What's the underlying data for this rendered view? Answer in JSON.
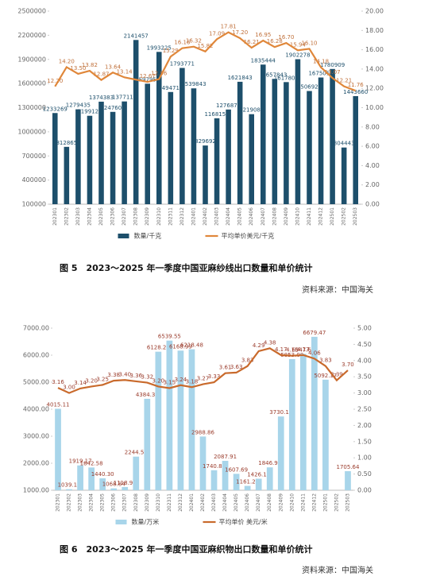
{
  "chart_data": [
    {
      "type": "combo",
      "caption": "图 5　2023～2025 年一季度中国亚麻纱线出口数量和单价统计",
      "source": "资料来源：中国海关",
      "categories": [
        "202301",
        "202302",
        "202303",
        "202304",
        "202305",
        "202306",
        "202307",
        "202308",
        "202309",
        "202310",
        "202311",
        "202312",
        "202401",
        "202402",
        "202403",
        "202404",
        "202405",
        "202406",
        "202407",
        "202408",
        "202409",
        "202410",
        "202411",
        "202412",
        "202501",
        "202502",
        "202503"
      ],
      "series": [
        {
          "name": "数量/千克",
          "type": "bar",
          "color": "#1d4f6b",
          "values": [
            1233269,
            812865,
            1279435,
            1199126,
            1374383,
            1247604,
            1377117,
            2141457,
            1597957,
            1993225,
            1494717,
            1793771,
            1539843,
            829692,
            1168150,
            1276877,
            1621843,
            1219086,
            1835444,
            1657843,
            1617802,
            1902278,
            1506925,
            1675012,
            1780909,
            804443,
            1443660
          ]
        },
        {
          "name": "平均单价美元/千克",
          "type": "line",
          "axis": "y2",
          "color": "#e0873a",
          "values": [
            12.2,
            14.2,
            13.5,
            13.82,
            12.87,
            13.64,
            13.14,
            12.9,
            12.67,
            12.96,
            15.29,
            16.16,
            16.32,
            15.82,
            17.09,
            17.81,
            17.2,
            16.21,
            16.95,
            16.28,
            16.7,
            15.94,
            16.1,
            14.18,
            13.07,
            12.21,
            11.76
          ],
          "value_labels": [
            "12.20",
            "14.20",
            "13.50",
            "13.82",
            "12.87",
            "13.64",
            "13.14",
            null,
            "12.67",
            "12.96",
            "15.29",
            "16.16",
            "16.32",
            "15.82",
            "17.09",
            "17.81",
            "17.20",
            "16.21",
            "16.95",
            "16.28",
            "16.70",
            "15.94",
            "16.10",
            "14.18",
            "13.07",
            "12.21",
            "11.76"
          ]
        }
      ],
      "ylim": [
        100000,
        2500000
      ],
      "yticks": [
        100000,
        400000,
        700000,
        1000000,
        1300000,
        1600000,
        1900000,
        2200000,
        2500000
      ],
      "y2lim": [
        0,
        20
      ],
      "y2ticks": [
        {
          "value": 0,
          "label": "0.00"
        },
        {
          "value": 2,
          "label": "2.00"
        },
        {
          "value": 4,
          "label": "4.00"
        },
        {
          "value": 6,
          "label": "6.00"
        },
        {
          "value": 8,
          "label": "8.00"
        },
        {
          "value": 10,
          "label": "10.00"
        },
        {
          "value": 12,
          "label": "12.00"
        },
        {
          "value": 14,
          "label": "14.00"
        },
        {
          "value": 16,
          "label": "16.00"
        },
        {
          "value": 18,
          "label": "18.00"
        },
        {
          "value": 20,
          "label": "20.00"
        }
      ],
      "grid": false,
      "legend": "bottom"
    },
    {
      "type": "combo",
      "caption": "图 6　2023～2025 年一季度中国亚麻织物出口数量和单价统计",
      "source": "资料来源：中国海关",
      "categories": [
        "202301",
        "202302",
        "202303",
        "202304",
        "202305",
        "202306",
        "202307",
        "202308",
        "202309",
        "202310",
        "202311",
        "202312",
        "202401",
        "202402",
        "202403",
        "202404",
        "202405",
        "202406",
        "202407",
        "202408",
        "202409",
        "202410",
        "202411",
        "202412",
        "202501",
        "202502",
        "202503"
      ],
      "series": [
        {
          "name": "数量/万米",
          "type": "bar",
          "color": "#a8d5ea",
          "values": [
            4015.11,
            1039.12,
            1919.17,
            1842.58,
            1440.3,
            1068.84,
            1118.98,
            2244.54,
            4384.38,
            6128.24,
            6539.55,
            6168.99,
            6218.48,
            2988.86,
            1740.87,
            2087.91,
            1607.69,
            1161.21,
            1426.13,
            1846.93,
            3730.14,
            5853.08,
            6047.64,
            6679.47,
            5092.37,
            null,
            1705.64
          ],
          "value_labels": [
            "4015.11",
            "1039.12",
            "1919.17",
            "1842.58",
            "1440.30",
            "1068.84",
            "1118.98",
            "2244.54",
            "4384.38",
            "6128.24",
            "6539.55",
            "6168.99",
            "6218.48",
            "2988.86",
            "1740.87",
            "2087.91",
            "1607.69",
            "1161.21",
            "1426.13",
            "1846.93",
            "3730.14",
            "5853.08",
            "6047.64",
            "6679.47",
            "5092.37",
            null,
            "1705.64"
          ]
        },
        {
          "name": "平均单价 美元/米",
          "type": "line",
          "axis": "y2",
          "color": "#c96a2c",
          "values": [
            3.16,
            3.0,
            3.14,
            3.2,
            3.25,
            3.38,
            3.4,
            3.36,
            3.32,
            3.2,
            3.15,
            3.24,
            3.18,
            3.27,
            3.33,
            3.61,
            3.63,
            3.83,
            4.29,
            4.38,
            4.17,
            4.15,
            4.17,
            4.06,
            3.83,
            3.39,
            3.7
          ],
          "value_labels": [
            "3.16",
            "3.00",
            "3.14",
            "3.20",
            "3.25",
            "3.38",
            "3.40",
            "3.36",
            "3.32",
            "3.20",
            "3.15",
            "3.24",
            "3.18",
            "3.27",
            "3.33",
            "3.61",
            "3.63",
            "3.83",
            "4.29",
            "4.38",
            "4.17",
            "4.15",
            "4.17",
            "4.06",
            "3.83",
            "3.39",
            "3.70"
          ]
        }
      ],
      "ylim": [
        1000,
        7000
      ],
      "yticks": [
        {
          "value": 1000,
          "label": "1000.00"
        },
        {
          "value": 2000,
          "label": "2000.00"
        },
        {
          "value": 3000,
          "label": "3000.00"
        },
        {
          "value": 4000,
          "label": "4000.00"
        },
        {
          "value": 5000,
          "label": "5000.00"
        },
        {
          "value": 6000,
          "label": "6000.00"
        },
        {
          "value": 7000,
          "label": "7000.00"
        }
      ],
      "y2lim": [
        0,
        5
      ],
      "y2ticks": [
        {
          "value": 0,
          "label": "0.00"
        },
        {
          "value": 0.5,
          "label": "0.50"
        },
        {
          "value": 1,
          "label": "1.00"
        },
        {
          "value": 1.5,
          "label": "1.50"
        },
        {
          "value": 2,
          "label": "2.00"
        },
        {
          "value": 2.5,
          "label": "2.50"
        },
        {
          "value": 3,
          "label": "3.00"
        },
        {
          "value": 3.5,
          "label": "3.50"
        },
        {
          "value": 4,
          "label": "4.00"
        },
        {
          "value": 4.5,
          "label": "4.50"
        },
        {
          "value": 5,
          "label": "5.00"
        }
      ],
      "grid": false,
      "legend": "bottom"
    }
  ]
}
